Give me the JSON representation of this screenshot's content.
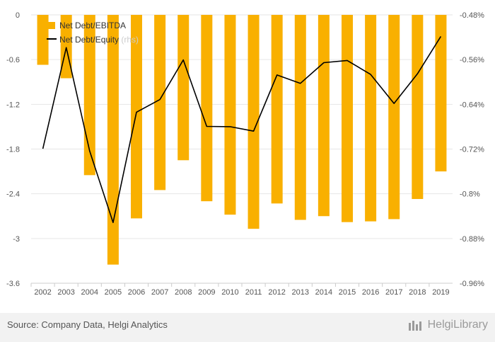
{
  "chart_data": {
    "type": "bar+line",
    "categories": [
      "2002",
      "2003",
      "2004",
      "2005",
      "2006",
      "2007",
      "2008",
      "2009",
      "2010",
      "2011",
      "2012",
      "2013",
      "2014",
      "2015",
      "2016",
      "2017",
      "2018",
      "2019"
    ],
    "series": [
      {
        "name": "Net Debt/EBITDA",
        "type": "bar",
        "axis": "left",
        "color": "#f9b000",
        "values": [
          -0.67,
          -0.85,
          -2.15,
          -3.35,
          -2.73,
          -2.35,
          -1.95,
          -2.5,
          -2.68,
          -2.87,
          -2.53,
          -2.75,
          -2.7,
          -2.78,
          -2.77,
          -2.74,
          -2.47,
          -2.1
        ]
      },
      {
        "name": "Net Debt/Equity",
        "unit_label": "(rhs)",
        "type": "line",
        "axis": "right",
        "color": "#000000",
        "values": [
          -0.7195,
          -0.5385,
          -0.7235,
          -0.8515,
          -0.654,
          -0.6315,
          -0.5605,
          -0.6795,
          -0.68,
          -0.688,
          -0.5875,
          -0.6025,
          -0.5655,
          -0.5615,
          -0.5865,
          -0.6385,
          -0.5855,
          -0.5185
        ]
      }
    ],
    "left_axis": {
      "ticks": [
        "0",
        "-0.6",
        "-1.2",
        "-1.8",
        "-2.4",
        "-3",
        "-3.6"
      ],
      "ylim": [
        -3.6,
        0
      ]
    },
    "right_axis": {
      "ticks": [
        "-0.48%",
        "-0.56%",
        "-0.64%",
        "-0.72%",
        "-0.8%",
        "-0.88%",
        "-0.96%"
      ],
      "ylim": [
        -0.96,
        -0.48
      ]
    },
    "grid": true,
    "legend_position": "top-left"
  },
  "footer": {
    "source": "Source: Company Data, Helgi Analytics",
    "brand": "HelgiLibrary"
  }
}
